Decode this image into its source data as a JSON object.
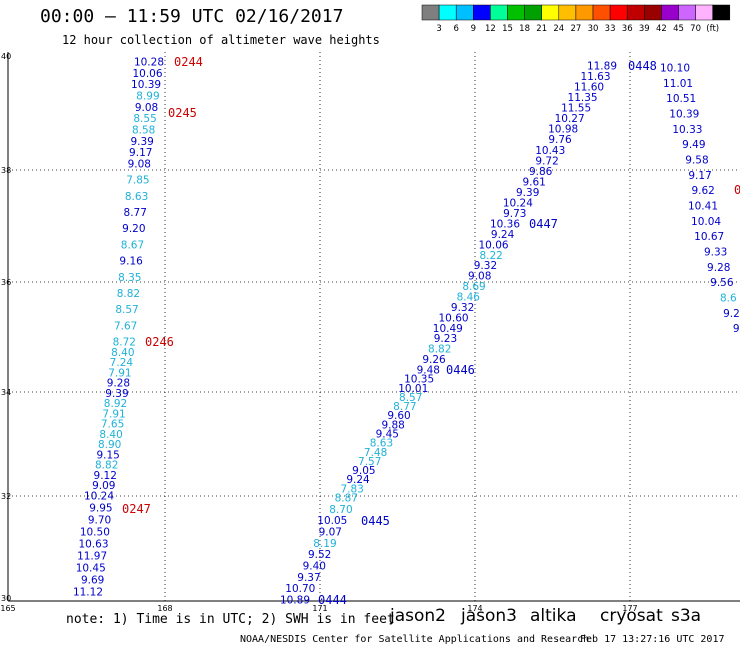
{
  "title": "00:00 – 11:59 UTC 02/16/2017",
  "subtitle": "12 hour collection of altimeter wave heights",
  "legend": {
    "colors": [
      "#7f7f7f",
      "#00ffff",
      "#00bfff",
      "#0000ff",
      "#00ff99",
      "#00c000",
      "#00a000",
      "#ffff00",
      "#ffbf00",
      "#ff9900",
      "#ff5000",
      "#ff0000",
      "#c00000",
      "#990000",
      "#9900cc",
      "#cc66ff",
      "#ffb3ff",
      "#000000"
    ],
    "labels": [
      "3",
      "6",
      "9",
      "12",
      "15",
      "18",
      "21",
      "24",
      "27",
      "30",
      "33",
      "36",
      "39",
      "42",
      "45",
      "70",
      "(ft)"
    ]
  },
  "axes": {
    "x_ticks": [
      "165",
      "168",
      "171",
      "174",
      "177"
    ],
    "y_ticks": [
      "40",
      "38",
      "36",
      "34",
      "32",
      "30"
    ]
  },
  "track_colors": {
    "j2": "#0000cc",
    "j3": "#1fb2d8",
    "time": "#cc0000"
  },
  "tracks": [
    {
      "name": "track-0244",
      "points": [
        {
          "v": "10.28",
          "c": "j2"
        },
        {
          "v": "10.06",
          "c": "j2"
        },
        {
          "v": "10.39",
          "c": "j2"
        },
        {
          "v": "8.99",
          "c": "j3"
        },
        {
          "v": "9.08",
          "c": "j2"
        },
        {
          "v": "8.55",
          "c": "j3"
        },
        {
          "v": "8.58",
          "c": "j3"
        },
        {
          "v": "9.39",
          "c": "j2"
        },
        {
          "v": "9.17",
          "c": "j2"
        },
        {
          "v": "9.08",
          "c": "j2"
        },
        {
          "v": "7.85",
          "c": "j3"
        },
        {
          "v": "8.63",
          "c": "j3"
        },
        {
          "v": "8.77",
          "c": "j2"
        },
        {
          "v": "9.20",
          "c": "j2"
        },
        {
          "v": "8.67",
          "c": "j3"
        },
        {
          "v": "9.16",
          "c": "j2"
        },
        {
          "v": "8.35",
          "c": "j3"
        },
        {
          "v": "8.82",
          "c": "j3"
        },
        {
          "v": "8.57",
          "c": "j3"
        },
        {
          "v": "7.67",
          "c": "j3"
        },
        {
          "v": "8.72",
          "c": "j3"
        },
        {
          "v": "8.40",
          "c": "j3"
        },
        {
          "v": "7.24",
          "c": "j3"
        },
        {
          "v": "7.91",
          "c": "j3"
        },
        {
          "v": "9.28",
          "c": "j2"
        },
        {
          "v": "9.39",
          "c": "j2"
        },
        {
          "v": "8.92",
          "c": "j3"
        },
        {
          "v": "7.91",
          "c": "j3"
        },
        {
          "v": "7.65",
          "c": "j3"
        },
        {
          "v": "8.40",
          "c": "j3"
        },
        {
          "v": "8.90",
          "c": "j3"
        },
        {
          "v": "9.15",
          "c": "j2"
        },
        {
          "v": "8.82",
          "c": "j3"
        },
        {
          "v": "9.12",
          "c": "j2"
        },
        {
          "v": "9.09",
          "c": "j2"
        },
        {
          "v": "10.24",
          "c": "j2"
        },
        {
          "v": "9.95",
          "c": "j2"
        },
        {
          "v": "9.70",
          "c": "j2"
        },
        {
          "v": "10.50",
          "c": "j2"
        },
        {
          "v": "10.63",
          "c": "j2"
        },
        {
          "v": "11.97",
          "c": "j2"
        },
        {
          "v": "10.45",
          "c": "j2"
        },
        {
          "v": "9.69",
          "c": "j2"
        },
        {
          "v": "11.12",
          "c": "j2"
        }
      ]
    },
    {
      "name": "track-0444",
      "points": [
        {
          "v": "11.89",
          "c": "j2"
        },
        {
          "v": "11.63",
          "c": "j2"
        },
        {
          "v": "11.60",
          "c": "j2"
        },
        {
          "v": "11.35",
          "c": "j2"
        },
        {
          "v": "11.55",
          "c": "j2"
        },
        {
          "v": "10.27",
          "c": "j2"
        },
        {
          "v": "10.98",
          "c": "j2"
        },
        {
          "v": "9.76",
          "c": "j2"
        },
        {
          "v": "10.43",
          "c": "j2"
        },
        {
          "v": "9.72",
          "c": "j2"
        },
        {
          "v": "9.86",
          "c": "j2"
        },
        {
          "v": "9.61",
          "c": "j2"
        },
        {
          "v": "9.39",
          "c": "j2"
        },
        {
          "v": "10.24",
          "c": "j2"
        },
        {
          "v": "9.73",
          "c": "j2"
        },
        {
          "v": "10.36",
          "c": "j2"
        },
        {
          "v": "9.24",
          "c": "j2"
        },
        {
          "v": "10.06",
          "c": "j2"
        },
        {
          "v": "8.22",
          "c": "j3"
        },
        {
          "v": "9.32",
          "c": "j2"
        },
        {
          "v": "9.08",
          "c": "j2"
        },
        {
          "v": "8.69",
          "c": "j3"
        },
        {
          "v": "8.46",
          "c": "j3"
        },
        {
          "v": "9.32",
          "c": "j2"
        },
        {
          "v": "10.60",
          "c": "j2"
        },
        {
          "v": "10.49",
          "c": "j2"
        },
        {
          "v": "9.23",
          "c": "j2"
        },
        {
          "v": "8.82",
          "c": "j3"
        },
        {
          "v": "9.26",
          "c": "j2"
        },
        {
          "v": "9.48",
          "c": "j2"
        },
        {
          "v": "10.35",
          "c": "j2"
        },
        {
          "v": "10.01",
          "c": "j2"
        },
        {
          "v": "8.57",
          "c": "j3"
        },
        {
          "v": "8.77",
          "c": "j3"
        },
        {
          "v": "9.60",
          "c": "j2"
        },
        {
          "v": "9.88",
          "c": "j2"
        },
        {
          "v": "9.45",
          "c": "j2"
        },
        {
          "v": "8.63",
          "c": "j3"
        },
        {
          "v": "7.48",
          "c": "j3"
        },
        {
          "v": "7.57",
          "c": "j3"
        },
        {
          "v": "9.05",
          "c": "j2"
        },
        {
          "v": "9.24",
          "c": "j2"
        },
        {
          "v": "7.83",
          "c": "j3"
        },
        {
          "v": "8.87",
          "c": "j3"
        },
        {
          "v": "8.70",
          "c": "j3"
        },
        {
          "v": "10.05",
          "c": "j2"
        },
        {
          "v": "9.07",
          "c": "j2"
        },
        {
          "v": "8.19",
          "c": "j3"
        },
        {
          "v": "9.52",
          "c": "j2"
        },
        {
          "v": "9.40",
          "c": "j2"
        },
        {
          "v": "9.37",
          "c": "j2"
        },
        {
          "v": "10.70",
          "c": "j2"
        },
        {
          "v": "10.89",
          "c": "j2"
        }
      ]
    },
    {
      "name": "track-0448",
      "points": [
        {
          "v": "10.10",
          "c": "j2"
        },
        {
          "v": "11.01",
          "c": "j2"
        },
        {
          "v": "10.51",
          "c": "j2"
        },
        {
          "v": "10.39",
          "c": "j2"
        },
        {
          "v": "10.33",
          "c": "j2"
        },
        {
          "v": "9.49",
          "c": "j2"
        },
        {
          "v": "9.58",
          "c": "j2"
        },
        {
          "v": "9.17",
          "c": "j2"
        },
        {
          "v": "9.62",
          "c": "j2"
        },
        {
          "v": "10.41",
          "c": "j2"
        },
        {
          "v": "10.04",
          "c": "j2"
        },
        {
          "v": "10.67",
          "c": "j2"
        },
        {
          "v": "9.33",
          "c": "j2"
        },
        {
          "v": "9.28",
          "c": "j2"
        },
        {
          "v": "9.56",
          "c": "j2"
        },
        {
          "v": "8.6",
          "c": "j3"
        },
        {
          "v": "9.2",
          "c": "j2"
        },
        {
          "v": "9.",
          "c": "j2"
        },
        {
          "v": "8",
          "c": "j3"
        }
      ]
    }
  ],
  "time_labels": [
    {
      "t": "0244",
      "c": "time"
    },
    {
      "t": "0245",
      "c": "time"
    },
    {
      "t": "0246",
      "c": "time"
    },
    {
      "t": "0247",
      "c": "time"
    },
    {
      "t": "0444",
      "c": "j2"
    },
    {
      "t": "0445",
      "c": "j2"
    },
    {
      "t": "0446",
      "c": "j2"
    },
    {
      "t": "0447",
      "c": "j2"
    },
    {
      "t": "0448",
      "c": "j2"
    },
    {
      "t": "0",
      "c": "time"
    }
  ],
  "footer": {
    "note": "note: 1) Time is in UTC; 2) SWH is in feet",
    "satellites": [
      {
        "name": "jason2",
        "color": "#0000cc"
      },
      {
        "name": "jason3",
        "color": "#00a000"
      },
      {
        "name": "altika",
        "color": "#ff9900"
      },
      {
        "name": "cryosat",
        "color": "#cc0000"
      },
      {
        "name": "s3a",
        "color": "#990000"
      }
    ],
    "credit": "NOAA/NESDIS Center for Satellite Applications and Research",
    "timestamp": "Feb 17 13:27:16 UTC 2017"
  }
}
